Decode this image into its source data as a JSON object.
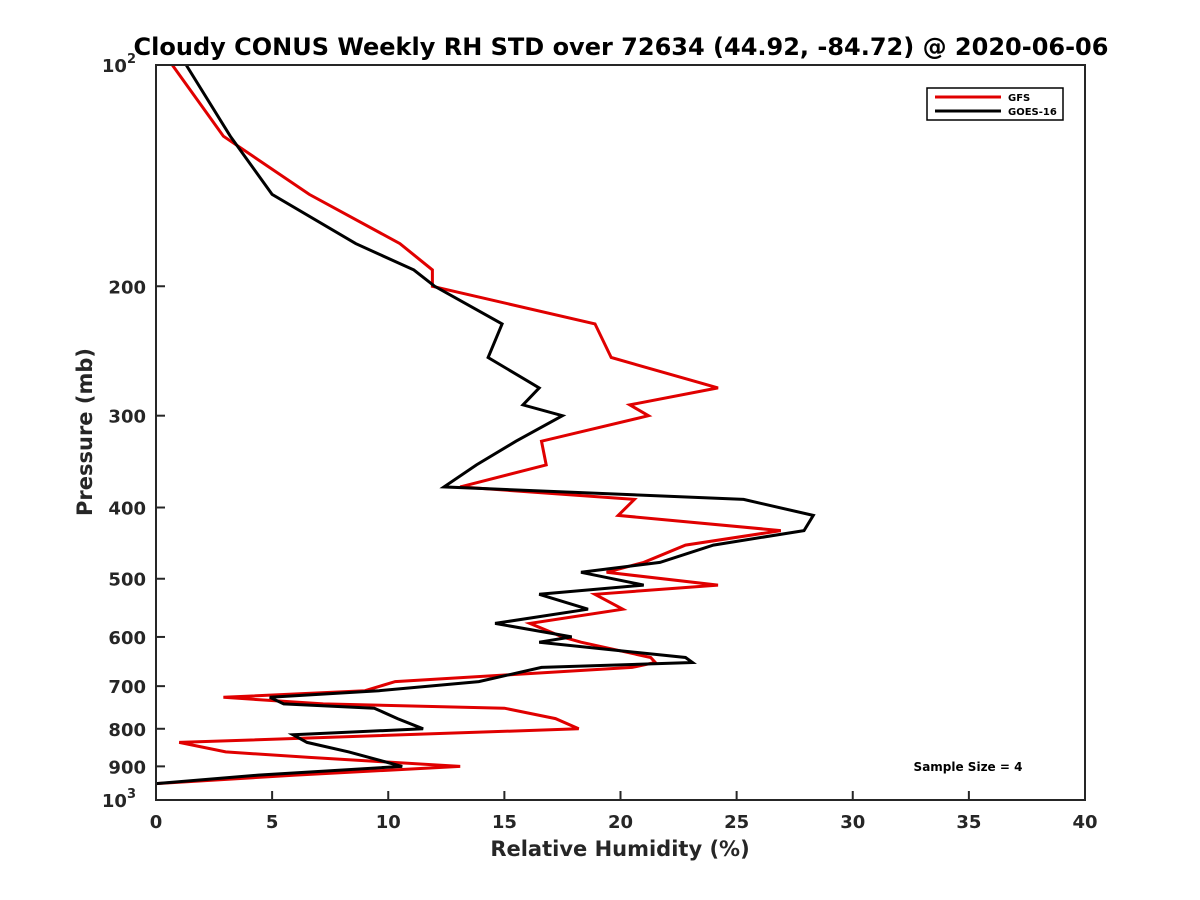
{
  "chart_data": {
    "type": "line",
    "title": "Cloudy CONUS Weekly RH STD over 72634 (44.92, -84.72) @ 2020-06-06",
    "xlabel": "Relative Humidity (%)",
    "ylabel": "Pressure (mb)",
    "xlim": [
      0,
      40
    ],
    "ylim": [
      100,
      1000
    ],
    "y_scale": "log",
    "y_reversed": true,
    "grid": false,
    "legend_position": "top-right",
    "x_ticks": [
      "0",
      "5",
      "10",
      "15",
      "20",
      "25",
      "30",
      "35",
      "40"
    ],
    "y_ticks": [
      {
        "value": 100,
        "base": "10",
        "exp": "2"
      },
      {
        "value": 200,
        "label": "200"
      },
      {
        "value": 300,
        "label": "300"
      },
      {
        "value": 400,
        "label": "400"
      },
      {
        "value": 500,
        "label": "500"
      },
      {
        "value": 600,
        "label": "600"
      },
      {
        "value": 700,
        "label": "700"
      },
      {
        "value": 800,
        "label": "800"
      },
      {
        "value": 900,
        "label": "900"
      },
      {
        "value": 1000,
        "base": "10",
        "exp": "3"
      }
    ],
    "annotation": "Sample Size = 4",
    "series": [
      {
        "name": "GFS",
        "color": "#e00000",
        "points": [
          [
            0.7,
            100
          ],
          [
            2.9,
            125
          ],
          [
            6.6,
            150
          ],
          [
            10.5,
            175
          ],
          [
            11.9,
            190
          ],
          [
            11.9,
            200
          ],
          [
            18.9,
            225
          ],
          [
            19.6,
            250
          ],
          [
            24.2,
            275
          ],
          [
            20.4,
            290
          ],
          [
            21.2,
            300
          ],
          [
            16.6,
            325
          ],
          [
            16.8,
            350
          ],
          [
            13.1,
            375
          ],
          [
            20.6,
            390
          ],
          [
            19.9,
            410
          ],
          [
            26.9,
            430
          ],
          [
            22.8,
            450
          ],
          [
            21.0,
            475
          ],
          [
            19.4,
            490
          ],
          [
            24.2,
            510
          ],
          [
            18.9,
            525
          ],
          [
            20.1,
            550
          ],
          [
            16.1,
            575
          ],
          [
            17.5,
            600
          ],
          [
            18.3,
            610
          ],
          [
            21.3,
            640
          ],
          [
            21.5,
            650
          ],
          [
            20.5,
            660
          ],
          [
            10.3,
            690
          ],
          [
            9.0,
            710
          ],
          [
            2.9,
            725
          ],
          [
            7.2,
            740
          ],
          [
            15.0,
            750
          ],
          [
            17.2,
            775
          ],
          [
            18.2,
            800
          ],
          [
            1.0,
            835
          ],
          [
            3.0,
            860
          ],
          [
            6.6,
            875
          ],
          [
            13.1,
            900
          ],
          [
            6.0,
            925
          ],
          [
            0.0,
            950
          ]
        ]
      },
      {
        "name": "GOES-16",
        "color": "#000000",
        "points": [
          [
            1.3,
            100
          ],
          [
            3.2,
            125
          ],
          [
            5.0,
            150
          ],
          [
            8.6,
            175
          ],
          [
            11.1,
            190
          ],
          [
            12.0,
            200
          ],
          [
            14.9,
            225
          ],
          [
            14.3,
            250
          ],
          [
            16.5,
            275
          ],
          [
            15.8,
            290
          ],
          [
            17.5,
            300
          ],
          [
            15.5,
            325
          ],
          [
            13.8,
            350
          ],
          [
            12.4,
            375
          ],
          [
            25.3,
            390
          ],
          [
            28.3,
            410
          ],
          [
            27.9,
            430
          ],
          [
            24.0,
            450
          ],
          [
            21.7,
            475
          ],
          [
            18.3,
            490
          ],
          [
            21.0,
            510
          ],
          [
            16.5,
            525
          ],
          [
            18.6,
            550
          ],
          [
            14.6,
            575
          ],
          [
            17.9,
            600
          ],
          [
            16.5,
            610
          ],
          [
            22.8,
            640
          ],
          [
            23.1,
            650
          ],
          [
            16.6,
            660
          ],
          [
            13.9,
            690
          ],
          [
            9.6,
            710
          ],
          [
            4.9,
            725
          ],
          [
            5.5,
            740
          ],
          [
            9.4,
            750
          ],
          [
            10.4,
            775
          ],
          [
            11.5,
            800
          ],
          [
            5.9,
            815
          ],
          [
            6.5,
            835
          ],
          [
            8.3,
            860
          ],
          [
            10.6,
            900
          ],
          [
            4.4,
            925
          ],
          [
            0.0,
            950
          ]
        ]
      }
    ]
  }
}
